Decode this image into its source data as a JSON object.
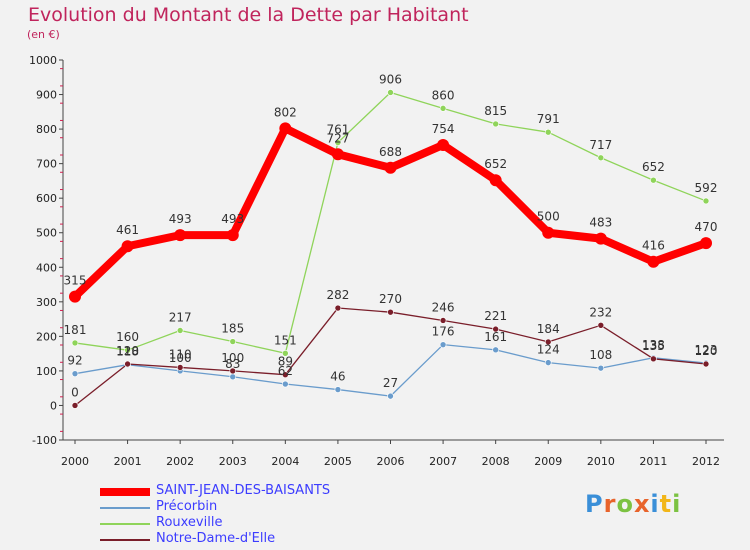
{
  "title": "Evolution du Montant de la Dette par Habitant",
  "subtitle": "(en €)",
  "logo": {
    "letters": [
      "P",
      "r",
      "o",
      "x",
      "i",
      "t",
      "i"
    ],
    "colors": [
      "#3a8fd8",
      "#e8632b",
      "#7cc242",
      "#e8632b",
      "#3a8fd8",
      "#f2b619",
      "#7cc242"
    ]
  },
  "chart_data": {
    "type": "line",
    "title": "Evolution du Montant de la Dette par Habitant",
    "subtitle": "(en €)",
    "xlabel": "",
    "ylabel": "",
    "x": [
      "2000",
      "2001",
      "2002",
      "2003",
      "2004",
      "2005",
      "2006",
      "2007",
      "2008",
      "2009",
      "2010",
      "2011",
      "2012"
    ],
    "ylim": [
      -100,
      1000
    ],
    "yticks": [
      "-100",
      "0",
      "100",
      "200",
      "300",
      "400",
      "500",
      "600",
      "700",
      "800",
      "900",
      "1000"
    ],
    "grid": false,
    "legend": "bottom-left",
    "series": [
      {
        "name": "SAINT-JEAN-DES-BAISANTS",
        "color": "#ff0000",
        "values": [
          315,
          461,
          493,
          493,
          802,
          727,
          688,
          754,
          652,
          500,
          483,
          416,
          470
        ],
        "labels": [
          "315",
          "461",
          "493",
          "493",
          "802",
          "727",
          "688",
          "754",
          "652",
          "500",
          "483",
          "416",
          "470"
        ]
      },
      {
        "name": "Précorbin",
        "color": "#6a9ccc",
        "values": [
          92,
          118,
          100,
          83,
          62,
          46,
          27,
          176,
          161,
          124,
          108,
          138,
          123
        ],
        "labels": [
          "92",
          "118",
          "100",
          "83",
          "62",
          "46",
          "27",
          "176",
          "161",
          "124",
          "108",
          "138",
          "123"
        ]
      },
      {
        "name": "Rouxeville",
        "color": "#8fd45a",
        "values": [
          181,
          160,
          217,
          185,
          151,
          761,
          906,
          860,
          815,
          791,
          717,
          652,
          592
        ],
        "labels": [
          "181",
          "160",
          "217",
          "185",
          "151",
          "761",
          "906",
          "860",
          "815",
          "791",
          "717",
          "652",
          "592"
        ]
      },
      {
        "name": "Notre-Dame-d'Elle",
        "color": "#7a1e2a",
        "values": [
          0,
          120,
          110,
          100,
          89,
          282,
          270,
          246,
          221,
          184,
          232,
          135,
          120
        ],
        "labels": [
          "0",
          "120",
          "110",
          "100",
          "89",
          "282",
          "270",
          "246",
          "221",
          "184",
          "232",
          "135",
          "120"
        ]
      }
    ]
  }
}
